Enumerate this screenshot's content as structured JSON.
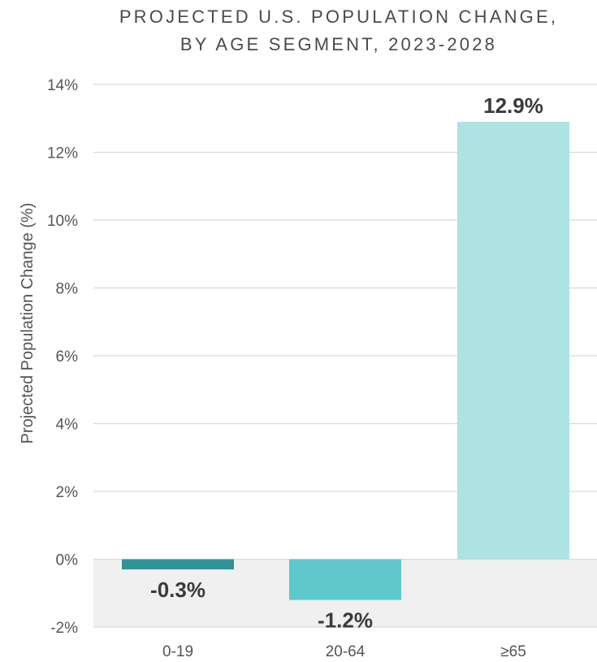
{
  "colors": {
    "negative_band": "#f0f0f0",
    "gridline": "#d9d9d9",
    "bar_colors": [
      "#2e9496",
      "#5ec8cc",
      "#ade3e3"
    ]
  },
  "chart_data": {
    "type": "bar",
    "title": [
      "PROJECTED U.S. POPULATION CHANGE,",
      "BY AGE SEGMENT, 2023-2028"
    ],
    "xlabel": "",
    "ylabel": "Projected Population Change (%)",
    "categories": [
      "0-19",
      "20-64",
      "≥65"
    ],
    "values": [
      -0.3,
      -1.2,
      12.9
    ],
    "data_labels": [
      "-0.3%",
      "-1.2%",
      "12.9%"
    ],
    "ylim": [
      -2,
      14
    ],
    "yticks": [
      14,
      12,
      10,
      8,
      6,
      4,
      2,
      0,
      -2
    ],
    "ytick_labels": [
      "14%",
      "12%",
      "10%",
      "8%",
      "6%",
      "4%",
      "2%",
      "0%",
      "-2%"
    ],
    "grid": true,
    "negative_region_shaded": true
  }
}
